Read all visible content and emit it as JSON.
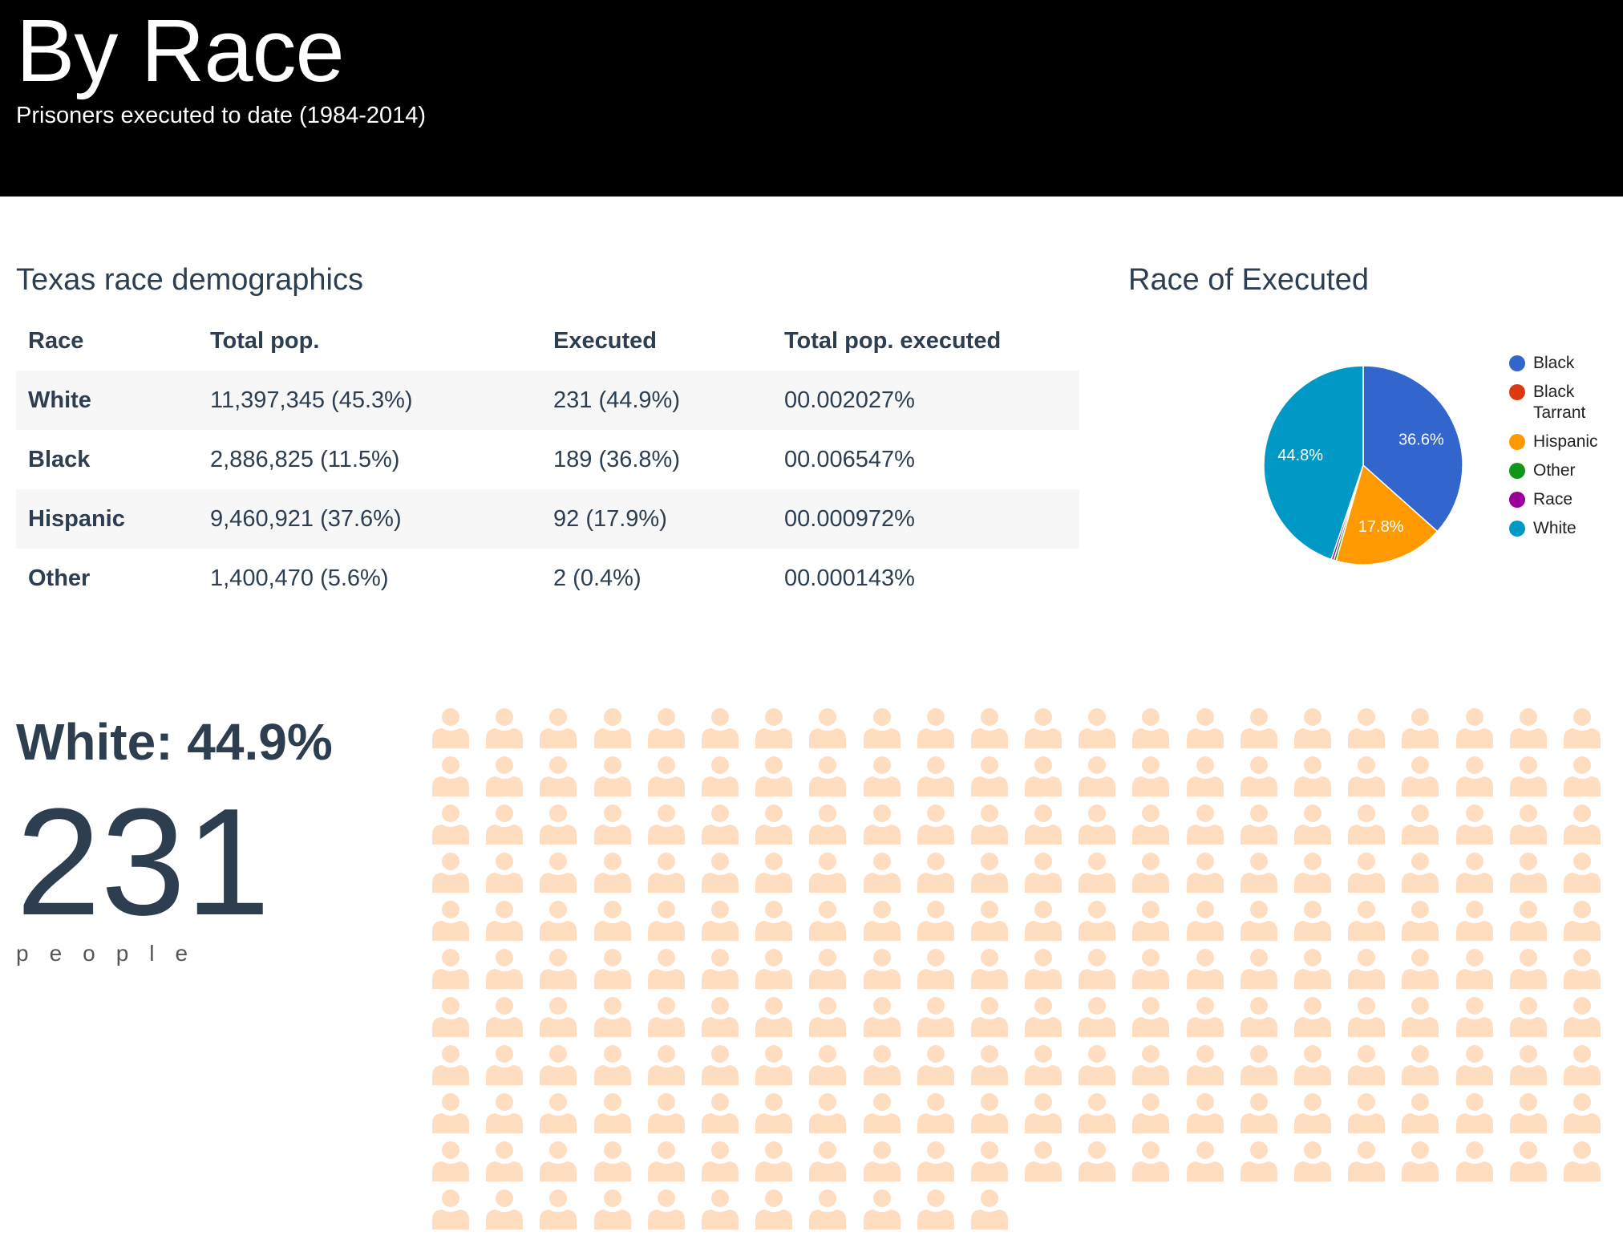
{
  "header": {
    "title": "By Race",
    "subtitle": "Prisoners executed to date (1984-2014)"
  },
  "demographics": {
    "title": "Texas race demographics",
    "columns": [
      "Race",
      "Total pop.",
      "Executed",
      "Total pop. executed"
    ],
    "rows": [
      {
        "race": "White",
        "total_pop": "11,397,345 (45.3%)",
        "executed": "231 (44.9%)",
        "pct_executed": "00.002027%"
      },
      {
        "race": "Black",
        "total_pop": "2,886,825 (11.5%)",
        "executed": "189 (36.8%)",
        "pct_executed": "00.006547%"
      },
      {
        "race": "Hispanic",
        "total_pop": "9,460,921 (37.6%)",
        "executed": "92 (17.9%)",
        "pct_executed": "00.000972%"
      },
      {
        "race": "Other",
        "total_pop": "1,400,470 (5.6%)",
        "executed": "2 (0.4%)",
        "pct_executed": "00.000143%"
      }
    ]
  },
  "stat": {
    "label": "White: 44.9%",
    "number": "231",
    "unit": "people",
    "icon_color": "#ffddc1",
    "icon_count": 231
  },
  "chart_data": {
    "type": "pie",
    "title": "Race of Executed",
    "legend_position": "right",
    "slices": [
      {
        "name": "Black",
        "value": 36.6,
        "label": "36.6%",
        "color": "#3366cc"
      },
      {
        "name": "Black Tarrant",
        "value": 0.0,
        "label": "",
        "color": "#dc3912"
      },
      {
        "name": "Hispanic",
        "value": 17.8,
        "label": "17.8%",
        "color": "#ff9900"
      },
      {
        "name": "Other",
        "value": 0.4,
        "label": "",
        "color": "#109618"
      },
      {
        "name": "Race",
        "value": 0.4,
        "label": "",
        "color": "#990099"
      },
      {
        "name": "White",
        "value": 44.8,
        "label": "44.8%",
        "color": "#0099c6"
      }
    ]
  }
}
